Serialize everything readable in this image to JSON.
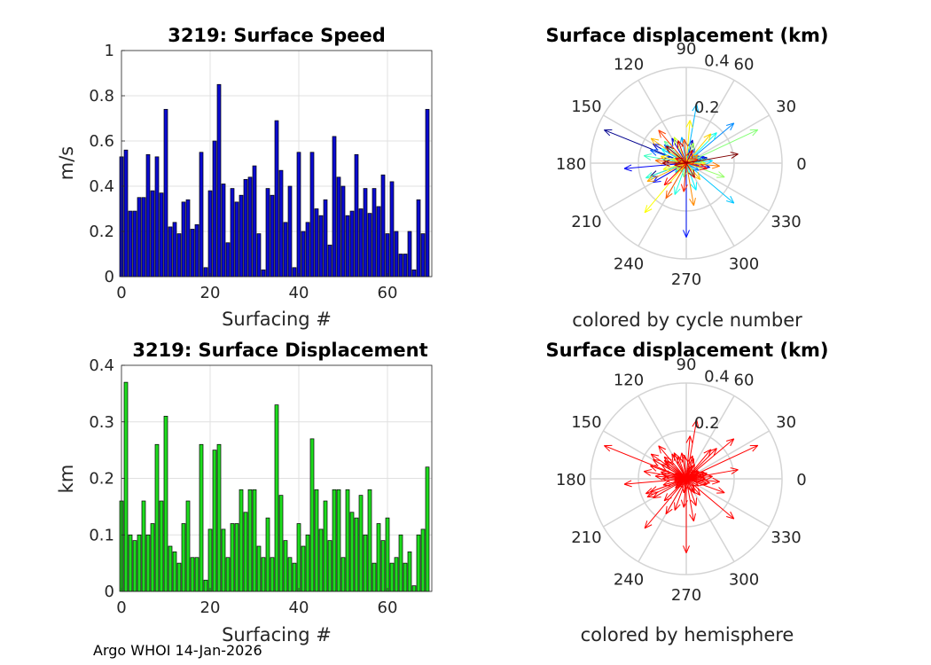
{
  "chart_data": [
    {
      "id": "speed",
      "type": "bar",
      "title": "3219: Surface Speed",
      "xlabel": "Surfacing #",
      "ylabel": "m/s",
      "xlim": [
        0,
        70
      ],
      "ylim": [
        0,
        1
      ],
      "xticks": [
        0,
        20,
        40,
        60
      ],
      "yticks": [
        0,
        0.2,
        0.4,
        0.6,
        0.8,
        1
      ],
      "ytick_labels": [
        "0",
        "0.2",
        "0.4",
        "0.6",
        "0.8",
        "1"
      ],
      "grid": true,
      "color": "#0a0ad0",
      "values": [
        0.53,
        0.56,
        0.29,
        0.29,
        0.35,
        0.35,
        0.54,
        0.38,
        0.53,
        0.37,
        0.74,
        0.22,
        0.24,
        0.19,
        0.33,
        0.34,
        0.21,
        0.23,
        0.55,
        0.04,
        0.38,
        0.6,
        0.85,
        0.41,
        0.15,
        0.39,
        0.33,
        0.36,
        0.43,
        0.44,
        0.49,
        0.19,
        0.03,
        0.39,
        0.36,
        0.69,
        0.47,
        0.24,
        0.4,
        0.04,
        0.55,
        0.2,
        0.24,
        0.55,
        0.3,
        0.27,
        0.34,
        0.14,
        0.62,
        0.44,
        0.4,
        0.27,
        0.29,
        0.54,
        0.3,
        0.39,
        0.28,
        0.39,
        0.31,
        0.45,
        0.19,
        0.42,
        0.2,
        0.1,
        0.1,
        0.2,
        0.03,
        0.34,
        0.19,
        0.74
      ]
    },
    {
      "id": "displacement",
      "type": "bar",
      "title": "3219: Surface Displacement",
      "xlabel": "Surfacing #",
      "ylabel": "km",
      "xlim": [
        0,
        70
      ],
      "ylim": [
        0,
        0.4
      ],
      "xticks": [
        0,
        20,
        40,
        60
      ],
      "yticks": [
        0,
        0.1,
        0.2,
        0.3,
        0.4
      ],
      "ytick_labels": [
        "0",
        "0.1",
        "0.2",
        "0.3",
        "0.4"
      ],
      "grid": true,
      "color": "#1edc1e",
      "values": [
        0.16,
        0.37,
        0.1,
        0.09,
        0.1,
        0.16,
        0.1,
        0.12,
        0.26,
        0.16,
        0.31,
        0.08,
        0.07,
        0.05,
        0.12,
        0.16,
        0.06,
        0.06,
        0.26,
        0.02,
        0.11,
        0.25,
        0.26,
        0.11,
        0.06,
        0.12,
        0.12,
        0.18,
        0.14,
        0.18,
        0.18,
        0.08,
        0.06,
        0.13,
        0.06,
        0.33,
        0.17,
        0.09,
        0.06,
        0.05,
        0.12,
        0.08,
        0.1,
        0.27,
        0.18,
        0.11,
        0.16,
        0.09,
        0.18,
        0.18,
        0.06,
        0.18,
        0.14,
        0.13,
        0.17,
        0.1,
        0.18,
        0.05,
        0.12,
        0.09,
        0.13,
        0.05,
        0.06,
        0.1,
        0.05,
        0.07,
        0.01,
        0.1,
        0.11,
        0.22
      ]
    },
    {
      "id": "polar-cycle",
      "type": "polar-arrows",
      "title": "Surface displacement (km)",
      "caption": "colored by cycle number",
      "rlim": [
        0,
        0.4
      ],
      "rticks": [
        0.2,
        0.4
      ],
      "rtick_labels": [
        "0.2",
        "0.4"
      ],
      "angle_ticks": [
        0,
        30,
        60,
        90,
        120,
        150,
        180,
        210,
        240,
        270,
        300,
        330
      ],
      "angle_tick_labels": [
        "0",
        "30",
        "60",
        "90",
        "120",
        "150",
        "180",
        "210",
        "240",
        "270",
        "300",
        "330"
      ],
      "color_mode": "jet",
      "directions_deg": [
        200,
        158,
        170,
        15,
        75,
        150,
        350,
        120,
        185,
        210,
        270,
        20,
        60,
        180,
        140,
        160,
        30,
        330,
        40,
        190,
        100,
        80,
        320,
        5,
        220,
        290,
        150,
        45,
        250,
        200,
        170,
        10,
        300,
        135,
        260,
        25,
        340,
        70,
        160,
        215,
        115,
        0,
        195,
        230,
        85,
        165,
        50,
        310,
        145,
        205,
        35,
        280,
        355,
        175,
        240,
        95,
        130,
        20,
        265,
        345,
        225,
        155,
        65,
        110,
        190,
        300,
        40,
        180,
        140,
        10
      ],
      "color": "#ff0000"
    },
    {
      "id": "polar-hemisphere",
      "type": "polar-arrows",
      "title": "Surface displacement (km)",
      "caption": "colored by hemisphere",
      "rlim": [
        0,
        0.4
      ],
      "rticks": [
        0.2,
        0.4
      ],
      "rtick_labels": [
        "0.2",
        "0.4"
      ],
      "angle_ticks": [
        0,
        30,
        60,
        90,
        120,
        150,
        180,
        210,
        240,
        270,
        300,
        330
      ],
      "angle_tick_labels": [
        "0",
        "30",
        "60",
        "90",
        "120",
        "150",
        "180",
        "210",
        "240",
        "270",
        "300",
        "330"
      ],
      "color_mode": "single",
      "color": "#ff0000"
    }
  ],
  "footer": "Argo WHOI 14-Jan-2026"
}
